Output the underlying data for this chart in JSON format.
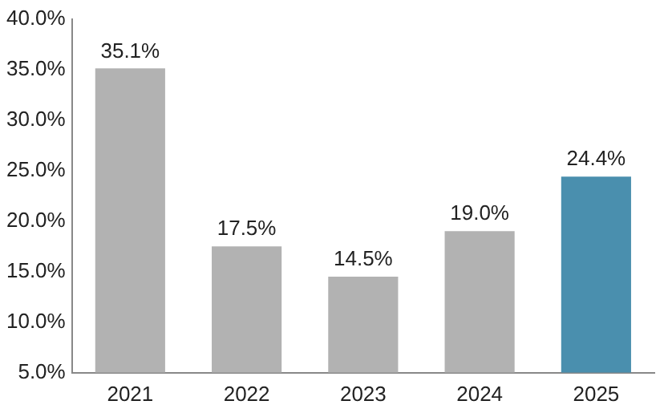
{
  "chart_data": {
    "type": "bar",
    "categories": [
      "2021",
      "2022",
      "2023",
      "2024",
      "2025"
    ],
    "values": [
      35.1,
      17.5,
      14.5,
      19.0,
      24.4
    ],
    "colors": [
      "#b2b2b2",
      "#b2b2b2",
      "#b2b2b2",
      "#b2b2b2",
      "#4a8fae"
    ],
    "value_labels": [
      "35.1%",
      "17.5%",
      "14.5%",
      "19.0%",
      "24.4%"
    ],
    "ylim": [
      5,
      40
    ],
    "yticks": [
      {
        "value": 5,
        "label": "5.0%"
      },
      {
        "value": 10,
        "label": "10.0%"
      },
      {
        "value": 15,
        "label": "15.0%"
      },
      {
        "value": 20,
        "label": "20.0%"
      },
      {
        "value": 25,
        "label": "25.0%"
      },
      {
        "value": 30,
        "label": "30.0%"
      },
      {
        "value": 35,
        "label": "35.0%"
      },
      {
        "value": 40,
        "label": "40.0%"
      }
    ],
    "grid": false,
    "legend": false
  }
}
